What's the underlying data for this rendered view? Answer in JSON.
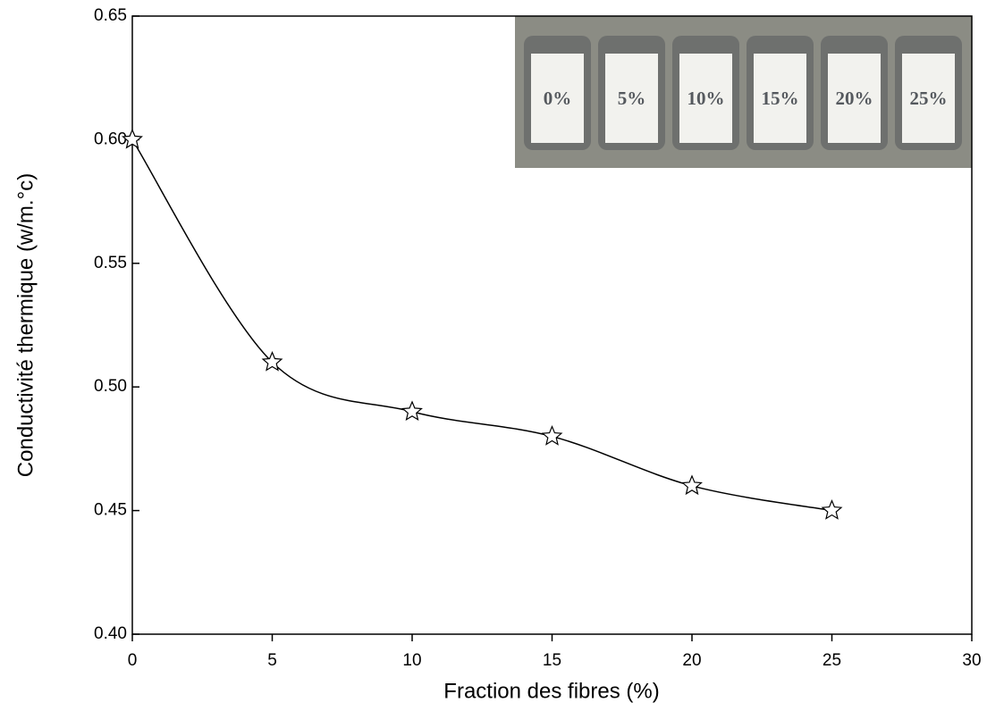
{
  "chart_data": {
    "type": "line",
    "x_label": "Fraction des fibres (%)",
    "y_label": "Conductivité thermique (w/m.°c)",
    "x": [
      0,
      5,
      10,
      15,
      20,
      25
    ],
    "series": [
      {
        "color": "#000000",
        "values": [
          0.6,
          0.51,
          0.49,
          0.48,
          0.46,
          0.45
        ]
      }
    ],
    "xlim": [
      0,
      30
    ],
    "xticks": [
      0,
      5,
      10,
      15,
      20,
      25,
      30
    ],
    "ylim": [
      0.4,
      0.65
    ],
    "yticks": [
      {
        "value": 0.4,
        "label": "0.40"
      },
      0.45,
      {
        "value": 0.5,
        "label": "0.50"
      },
      0.55,
      {
        "value": 0.6,
        "label": "0.60"
      },
      0.65
    ],
    "marker": "star",
    "smooth": true,
    "inset_labels": [
      "0%",
      "5%",
      "10%",
      "15%",
      "20%",
      "25%"
    ]
  }
}
